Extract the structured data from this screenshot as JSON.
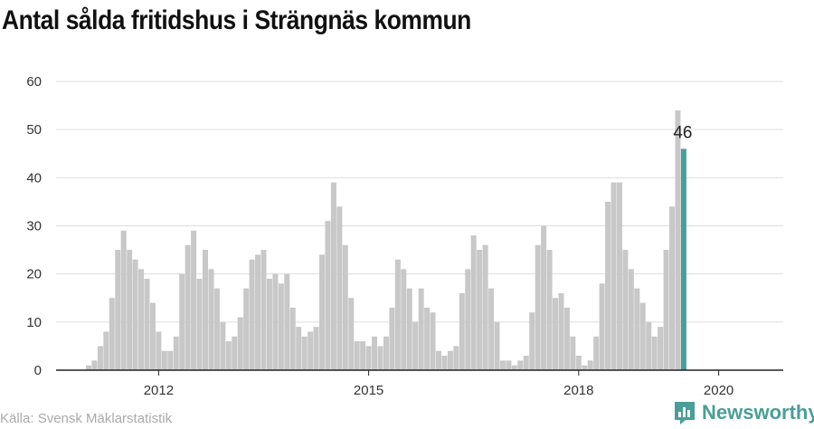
{
  "title": "Antal sålda fritidshus i Strängnäs kommun",
  "source": "Källa: Svensk Mäklarstatistik",
  "brand": {
    "name": "Newsworthy",
    "icon": "newsworthy-logo-icon",
    "color": "#4a9e97"
  },
  "chart_data": {
    "type": "bar",
    "title": "Antal sålda fritidshus i Strängnäs kommun",
    "xlabel": "",
    "ylabel": "",
    "ylim": [
      0,
      60
    ],
    "yticks": [
      "0",
      "10",
      "20",
      "30",
      "40",
      "50",
      "60"
    ],
    "xticks": [
      {
        "label": "2012",
        "month": "2012-01"
      },
      {
        "label": "2015",
        "month": "2015-01"
      },
      {
        "label": "2018",
        "month": "2018-01"
      },
      {
        "label": "2020",
        "month": "2020-01"
      }
    ],
    "start_month": "2011-01",
    "grid": true,
    "bar_color": "#c8c8c8",
    "highlight_color": "#4a9e97",
    "highlight_label": "46",
    "values": [
      1,
      2,
      5,
      8,
      15,
      25,
      29,
      25,
      23,
      21,
      19,
      14,
      8,
      4,
      4,
      7,
      20,
      26,
      29,
      19,
      25,
      21,
      17,
      10,
      6,
      7,
      11,
      17,
      23,
      24,
      25,
      19,
      20,
      18,
      20,
      13,
      9,
      7,
      8,
      9,
      24,
      31,
      39,
      34,
      26,
      15,
      6,
      6,
      5,
      7,
      5,
      7,
      13,
      23,
      21,
      17,
      10,
      17,
      13,
      12,
      4,
      3,
      4,
      5,
      16,
      21,
      28,
      25,
      26,
      17,
      10,
      2,
      2,
      1,
      2,
      3,
      12,
      26,
      30,
      25,
      15,
      16,
      13,
      7,
      3,
      1,
      2,
      7,
      18,
      35,
      39,
      39,
      25,
      21,
      17,
      14,
      10,
      7,
      9,
      25,
      34,
      54,
      46
    ]
  }
}
